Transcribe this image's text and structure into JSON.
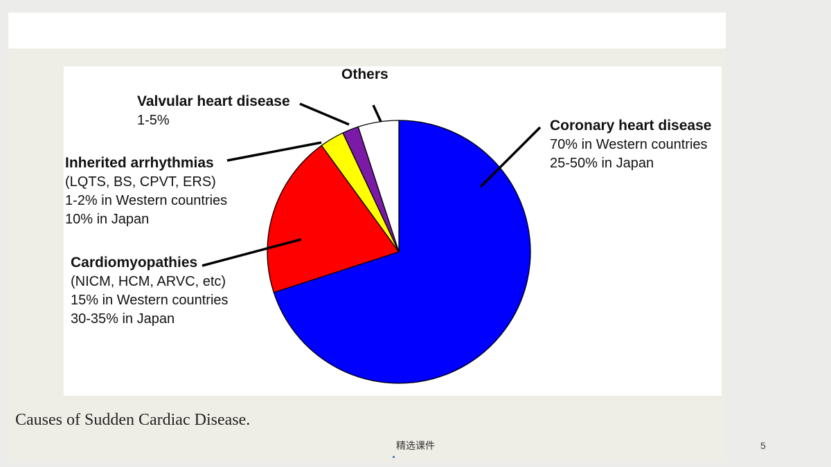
{
  "slide": {
    "caption": "Causes of Sudden Cardiac Disease.",
    "footer_text": "精选课件",
    "page_number": "5"
  },
  "chart_data": {
    "type": "pie",
    "title": "",
    "slices": [
      {
        "name": "Coronary heart disease",
        "value": 70,
        "color": "#0000ff",
        "label_lines": [
          "Coronary heart disease",
          "70% in Western countries",
          "25-50% in Japan"
        ]
      },
      {
        "name": "Cardiomyopathies",
        "value": 20,
        "color": "#ff0000",
        "label_lines": [
          "Cardiomyopathies",
          "(NICM, HCM, ARVC, etc)",
          "15% in Western countries",
          "30-35% in Japan"
        ]
      },
      {
        "name": "Inherited arrhythmias",
        "value": 3,
        "color": "#ffff00",
        "label_lines": [
          "Inherited arrhythmias",
          "(LQTS, BS, CPVT, ERS)",
          "1-2% in Western countries",
          "10% in Japan"
        ]
      },
      {
        "name": "Valvular heart disease",
        "value": 2,
        "color": "#7a1aa6",
        "label_lines": [
          "Valvular heart disease",
          "1-5%"
        ]
      },
      {
        "name": "Others",
        "value": 5,
        "color": "#ffffff",
        "label_lines": [
          "Others"
        ]
      }
    ],
    "start_angle": "12 o'clock",
    "direction": "clockwise",
    "legend": "none"
  }
}
